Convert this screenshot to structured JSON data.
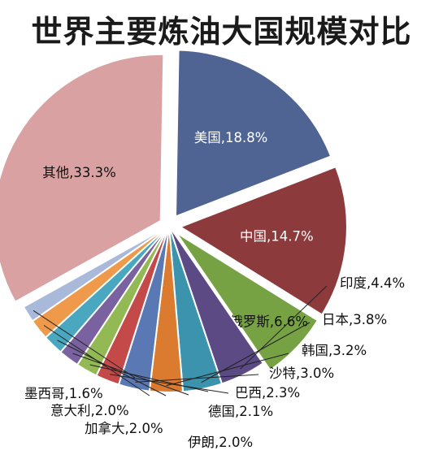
{
  "chart_data": {
    "type": "pie",
    "title": "世界主要炼油大国规模对比",
    "slices": [
      {
        "name": "美国",
        "label": "美国,18.8%",
        "value": 18.8,
        "color": "#4f6493",
        "text_color": "#ffffff"
      },
      {
        "name": "中国",
        "label": "中国,14.7%",
        "value": 14.7,
        "color": "#8d3a3d",
        "text_color": "#ffffff"
      },
      {
        "name": "俄罗斯",
        "label": "俄罗斯,6.6%",
        "value": 6.6,
        "color": "#77a244",
        "text_color": "#111111"
      },
      {
        "name": "印度",
        "label": "印度,4.4%",
        "value": 4.4,
        "color": "#5c4a84",
        "text_color": "#111111"
      },
      {
        "name": "日本",
        "label": "日本,3.8%",
        "value": 3.8,
        "color": "#3c93ad",
        "text_color": "#111111"
      },
      {
        "name": "韩国",
        "label": "韩国,3.2%",
        "value": 3.2,
        "color": "#db7b30",
        "text_color": "#111111"
      },
      {
        "name": "沙特",
        "label": "沙特,3.0%",
        "value": 3.0,
        "color": "#5a78b4",
        "text_color": "#111111"
      },
      {
        "name": "巴西",
        "label": "巴西,2.3%",
        "value": 2.3,
        "color": "#c44a49",
        "text_color": "#111111"
      },
      {
        "name": "德国",
        "label": "德国,2.1%",
        "value": 2.1,
        "color": "#93b955",
        "text_color": "#111111"
      },
      {
        "name": "伊朗",
        "label": "伊朗,2.0%",
        "value": 2.0,
        "color": "#7a62a0",
        "text_color": "#111111"
      },
      {
        "name": "加拿大",
        "label": "加拿大,2.0%",
        "value": 2.0,
        "color": "#4aa7c0",
        "text_color": "#111111"
      },
      {
        "name": "意大利",
        "label": "意大利,2.0%",
        "value": 2.0,
        "color": "#ee9a4a",
        "text_color": "#111111"
      },
      {
        "name": "墨西哥",
        "label": "墨西哥,1.6%",
        "value": 1.6,
        "color": "#a9b9da",
        "text_color": "#111111"
      },
      {
        "name": "其他",
        "label": "其他,33.3%",
        "value": 33.3,
        "color": "#d9a1a1",
        "text_color": "#111111"
      }
    ]
  }
}
